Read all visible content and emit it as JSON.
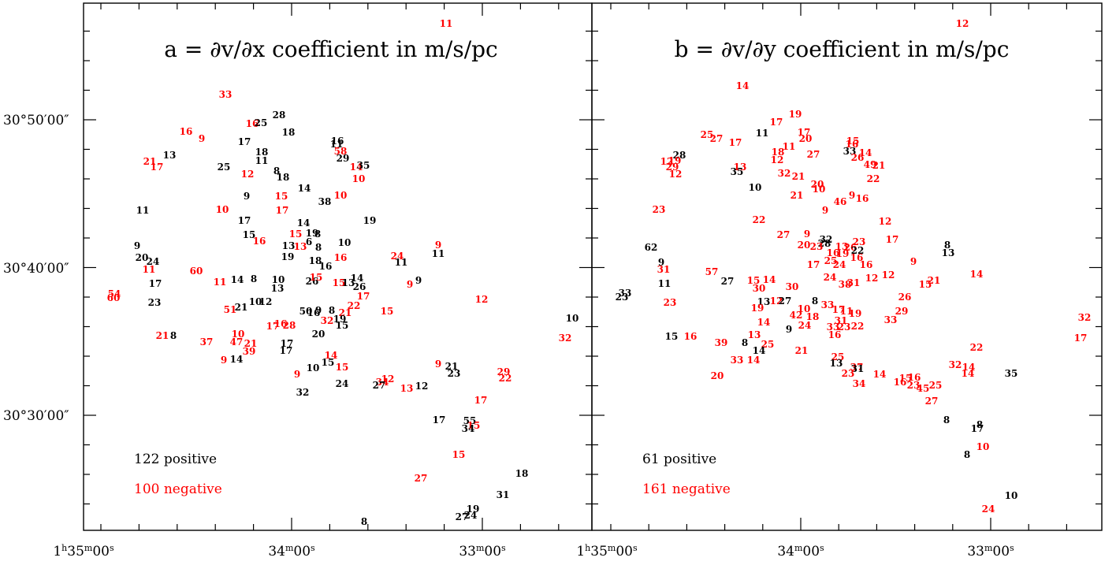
{
  "colors": {
    "positive": "#000000",
    "negative": "#ff0000"
  },
  "chart_data": [
    {
      "type": "scatter",
      "title": "a = ∂v/∂x coefficient in m/s/pc",
      "xlabel": "",
      "ylabel": "",
      "x_tick_labels": [
        "1h35m00s",
        "34m00s",
        "33m00s"
      ],
      "y_tick_labels": [
        "30°50′00″",
        "30°40′00″",
        "30°30′00″"
      ],
      "x_ticks": [
        {
          "sup1": "h",
          "pre": "1",
          "mid": "35",
          "sup2": "m",
          "post": "00",
          "sup3": "s"
        },
        {
          "sup1": "",
          "pre": "",
          "mid": "34",
          "sup2": "m",
          "post": "00",
          "sup3": "s"
        },
        {
          "sup1": "",
          "pre": "",
          "mid": "33",
          "sup2": "m",
          "post": "00",
          "sup3": "s"
        }
      ],
      "positive_label": "122 positive",
      "negative_label": "100 negative",
      "points": [
        {
          "ra": 2037,
          "dec": 1866,
          "v": "11",
          "s": "neg"
        },
        {
          "ra": 2048,
          "dec": 1875,
          "v": "12",
          "s": "neg"
        },
        {
          "ra": 2025,
          "dec": 1866,
          "v": "13",
          "s": "neg"
        },
        {
          "ra": 2030,
          "dec": 1869,
          "v": "14",
          "s": "neg"
        },
        {
          "ra": 2030,
          "dec": 1869,
          "v": "15",
          "s": "neg"
        },
        {
          "ra": 2024,
          "dec": 1867,
          "v": "16",
          "s": "neg"
        },
        {
          "ra": 2028,
          "dec": 1867,
          "v": "17",
          "s": "neg"
        },
        {
          "ra": 2048,
          "dec": 1874,
          "v": "21",
          "s": "neg"
        },
        {
          "ra": 2041,
          "dec": 1865,
          "v": "23",
          "s": "neg"
        },
        {
          "ra": 2029,
          "dec": 1869,
          "v": "24",
          "s": "neg"
        },
        {
          "ra": 2036,
          "dec": 1865,
          "v": "29",
          "s": "neg"
        },
        {
          "ra": 2024,
          "dec": 1867,
          "v": "30",
          "s": "neg"
        },
        {
          "ra": 2038,
          "dec": 1866,
          "v": "32",
          "s": "neg"
        },
        {
          "ra": 2042,
          "dec": 1865,
          "v": "33",
          "s": "neg"
        },
        {
          "ra": 2033,
          "dec": 1868,
          "v": "38",
          "s": "neg"
        },
        {
          "ra": 2036,
          "dec": 1868,
          "v": "41",
          "s": "neg"
        },
        {
          "ra": 2044,
          "dec": 1870,
          "v": "43",
          "s": "neg"
        },
        {
          "ra": 2028,
          "dec": 1867,
          "v": "47",
          "s": "neg"
        },
        {
          "ra": 2040,
          "dec": 1866,
          "v": "49",
          "s": "neg"
        },
        {
          "ra": 2042,
          "dec": 1865,
          "v": "50",
          "s": "neg"
        },
        {
          "ra": 2045,
          "dec": 1866,
          "v": "59",
          "s": "neg"
        },
        {
          "ra": 2043,
          "dec": 1864,
          "v": "11",
          "s": "pos"
        },
        {
          "ra": 2030,
          "dec": 1867,
          "v": "12",
          "s": "pos"
        },
        {
          "ra": 2034,
          "dec": 1868,
          "v": "13",
          "s": "pos"
        },
        {
          "ra": 2043,
          "dec": 1866,
          "v": "14",
          "s": "pos"
        },
        {
          "ra": 2031,
          "dec": 1867,
          "v": "15",
          "s": "pos"
        },
        {
          "ra": 2045,
          "dec": 1866,
          "v": "18",
          "s": "pos"
        },
        {
          "ra": 2029,
          "dec": 1867,
          "v": "19",
          "s": "pos"
        },
        {
          "ra": 2036,
          "dec": 1868,
          "v": "21",
          "s": "pos"
        },
        {
          "ra": 2044,
          "dec": 1866,
          "v": "22",
          "s": "pos"
        },
        {
          "ra": 2044,
          "dec": 1870,
          "v": "24",
          "s": "pos"
        },
        {
          "ra": 2030,
          "dec": 1870,
          "v": "27",
          "s": "pos"
        },
        {
          "ra": 2036,
          "dec": 1869,
          "v": "29",
          "s": "pos"
        },
        {
          "ra": 2041,
          "dec": 1866,
          "v": "31",
          "s": "pos"
        },
        {
          "ra": 2035,
          "dec": 1869,
          "v": "34",
          "s": "pos"
        },
        {
          "ra": 2042,
          "dec": 1867,
          "v": "52",
          "s": "pos"
        }
      ]
    },
    {
      "type": "scatter",
      "title": "b = ∂v/∂y coefficient in m/s/pc",
      "xlabel": "",
      "ylabel": "",
      "x_tick_labels": [
        "1h35m00s",
        "34m00s",
        "33m00s"
      ],
      "x_ticks": [
        {
          "sup1": "h",
          "pre": "1",
          "mid": "35",
          "sup2": "m",
          "post": "00",
          "sup3": "s"
        },
        {
          "sup1": "",
          "pre": "",
          "mid": "34",
          "sup2": "m",
          "post": "00",
          "sup3": "s"
        },
        {
          "sup1": "",
          "pre": "",
          "mid": "33",
          "sup2": "m",
          "post": "00",
          "sup3": "s"
        }
      ],
      "positive_label": "61 positive",
      "negative_label": "161 negative",
      "points": [
        {
          "ra": 2035,
          "dec": 1868,
          "v": "11",
          "s": "neg"
        },
        {
          "ra": 2034,
          "dec": 1869,
          "v": "14",
          "s": "neg"
        },
        {
          "ra": 2041,
          "dec": 1866,
          "v": "15",
          "s": "neg"
        },
        {
          "ra": 2046,
          "dec": 1866,
          "v": "19",
          "s": "neg"
        },
        {
          "ra": 2043,
          "dec": 1866,
          "v": "14",
          "s": "neg"
        },
        {
          "ra": 2029,
          "dec": 1868,
          "v": "16",
          "s": "neg"
        },
        {
          "ra": 2030,
          "dec": 1865,
          "v": "21",
          "s": "neg"
        },
        {
          "ra": 2037,
          "dec": 1866,
          "v": "22",
          "s": "neg"
        },
        {
          "ra": 2031,
          "dec": 1866,
          "v": "23",
          "s": "neg"
        },
        {
          "ra": 2047,
          "dec": 1871,
          "v": "28",
          "s": "neg"
        },
        {
          "ra": 2046,
          "dec": 1868,
          "v": "30",
          "s": "neg"
        },
        {
          "ra": 2042,
          "dec": 1869,
          "v": "33",
          "s": "neg"
        },
        {
          "ra": 2049,
          "dec": 1868,
          "v": "37",
          "s": "neg"
        },
        {
          "ra": 2048,
          "dec": 1869,
          "v": "40",
          "s": "neg"
        },
        {
          "ra": 2033,
          "dec": 1869,
          "v": "44",
          "s": "neg"
        },
        {
          "ra": 2029,
          "dec": 1867,
          "v": "48",
          "s": "neg"
        },
        {
          "ra": 2032,
          "dec": 1866,
          "v": "53",
          "s": "neg"
        },
        {
          "ra": 2036,
          "dec": 1866,
          "v": "57",
          "s": "neg"
        },
        {
          "ra": 2042,
          "dec": 1865,
          "v": "61",
          "s": "neg"
        },
        {
          "ra": 2036,
          "dec": 1869,
          "v": "12",
          "s": "pos"
        },
        {
          "ra": 2029,
          "dec": 1866,
          "v": "13",
          "s": "pos"
        },
        {
          "ra": 2031,
          "dec": 1865,
          "v": "24",
          "s": "pos"
        },
        {
          "ra": 2038,
          "dec": 1865,
          "v": "27",
          "s": "pos"
        },
        {
          "ra": 2046,
          "dec": 1866,
          "v": "35",
          "s": "pos"
        },
        {
          "ra": 2043,
          "dec": 1865,
          "v": "38",
          "s": "pos"
        },
        {
          "ra": 2044,
          "dec": 1870,
          "v": "42",
          "s": "pos"
        }
      ]
    }
  ]
}
